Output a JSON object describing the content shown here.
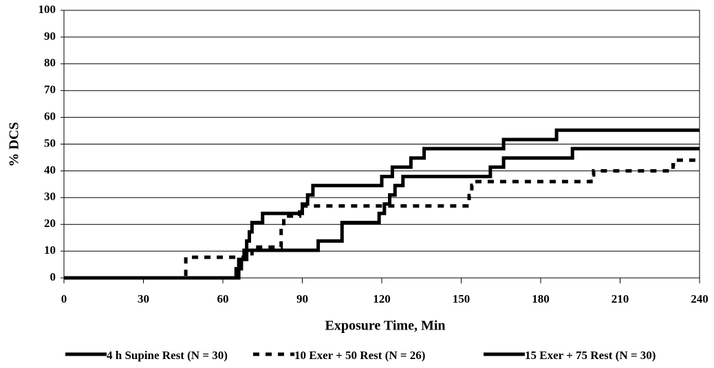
{
  "chart_data": {
    "type": "line",
    "step": true,
    "x_label": "Exposure Time, Min",
    "y_label": "% DCS",
    "xlim": [
      0,
      240
    ],
    "xticks": [
      0,
      30,
      60,
      90,
      120,
      150,
      180,
      210,
      240
    ],
    "ylim": [
      0,
      100
    ],
    "yticks": [
      0,
      10,
      20,
      30,
      40,
      50,
      60,
      70,
      80,
      90,
      100
    ],
    "grid": true,
    "legend": "bottom",
    "series": [
      {
        "name": "4 h Supine Rest (N = 30)",
        "color": "#000000",
        "style": "solid",
        "x": [
          0,
          66,
          67,
          68,
          69,
          70,
          71,
          75,
          90,
          92,
          94,
          120,
          124,
          131,
          136,
          166,
          186,
          240
        ],
        "values": [
          0,
          3.4,
          6.9,
          10.3,
          13.8,
          17.2,
          20.7,
          24.1,
          27.6,
          31,
          34.5,
          37.9,
          41.4,
          44.8,
          48.3,
          51.7,
          55.2,
          55.2
        ]
      },
      {
        "name": "10 Exer + 50 Rest (N = 26)",
        "color": "#000000",
        "style": "dashed",
        "x": [
          0,
          46,
          71,
          82,
          83,
          89,
          153,
          154,
          155,
          199,
          200,
          230,
          231,
          240
        ],
        "values": [
          0,
          7.7,
          11.5,
          19.2,
          23.1,
          26.9,
          30.8,
          34.6,
          36,
          38.5,
          40,
          42.3,
          44,
          44
        ]
      },
      {
        "name": "15 Exer + 75 Rest (N = 30)",
        "color": "#000000",
        "style": "solid",
        "x": [
          0,
          65,
          66,
          69,
          96,
          105,
          119,
          121,
          123,
          125,
          128,
          161,
          166,
          192,
          240
        ],
        "values": [
          0,
          3.4,
          6.9,
          10.3,
          13.8,
          20.7,
          24.1,
          27.6,
          31,
          34.5,
          37.9,
          41.4,
          44.8,
          48.3,
          48.3
        ]
      }
    ]
  }
}
